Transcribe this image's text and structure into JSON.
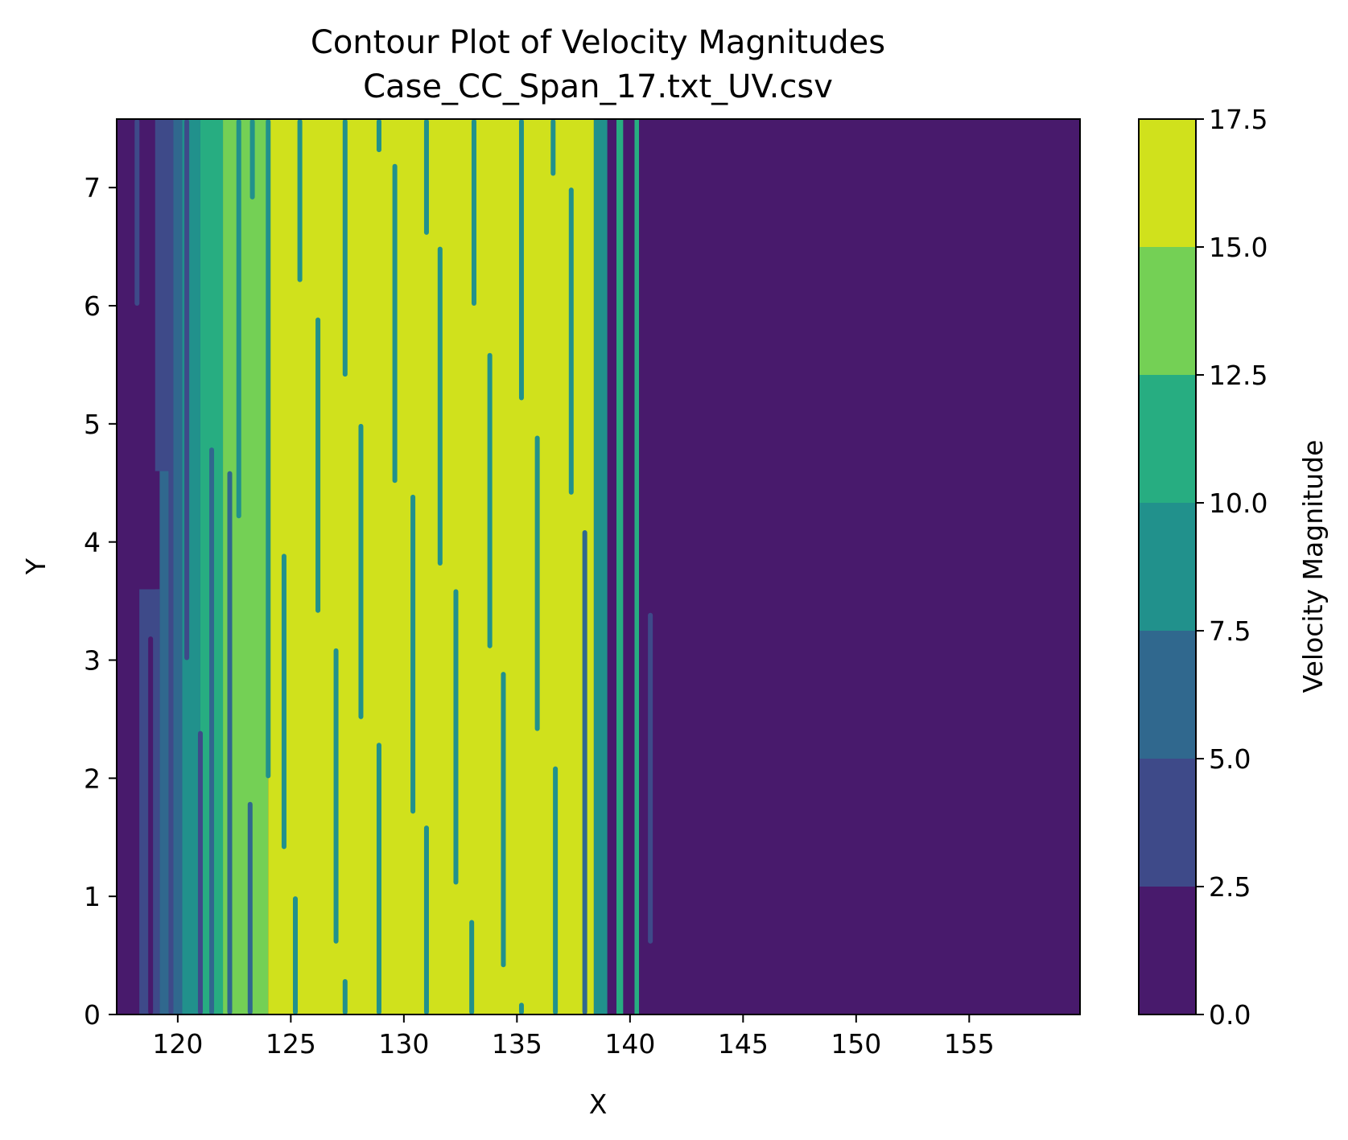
{
  "chart_data": {
    "type": "heatmap",
    "subtype": "filled-contour",
    "title": "Contour Plot of Velocity Magnitudes",
    "subtitle": "Case_CC_Span_17.txt_UV.csv",
    "xlabel": "X",
    "ylabel": "Y",
    "xlim": [
      117.3,
      159.9
    ],
    "ylim": [
      0,
      7.58
    ],
    "xticks": [
      120,
      125,
      130,
      135,
      140,
      145,
      150,
      155
    ],
    "xtick_labels": [
      "120",
      "125",
      "130",
      "135",
      "140",
      "145",
      "150",
      "155"
    ],
    "yticks": [
      0,
      1,
      2,
      3,
      4,
      5,
      6,
      7
    ],
    "ytick_labels": [
      "0",
      "1",
      "2",
      "3",
      "4",
      "5",
      "6",
      "7"
    ],
    "colorbar": {
      "label": "Velocity Magnitude",
      "levels": [
        0.0,
        2.5,
        5.0,
        7.5,
        10.0,
        12.5,
        15.0,
        17.5
      ],
      "tick_labels": [
        "0.0",
        "2.5",
        "5.0",
        "7.5",
        "10.0",
        "12.5",
        "15.0",
        "17.5"
      ],
      "colors": [
        "#481a6c",
        "#3e4a89",
        "#30688e",
        "#21918c",
        "#27ad81",
        "#74d055",
        "#d0e11c"
      ]
    },
    "regions": [
      {
        "x0": 117.3,
        "x1": 118.3,
        "y0": 0,
        "y1": 7.58,
        "level": 0
      },
      {
        "x0": 118.3,
        "x1": 119.2,
        "y0": 0,
        "y1": 3.6,
        "level": 1
      },
      {
        "x0": 118.3,
        "x1": 119.0,
        "y0": 3.6,
        "y1": 7.58,
        "level": 0
      },
      {
        "x0": 119.2,
        "x1": 120.2,
        "y0": 0,
        "y1": 7.58,
        "level": 2
      },
      {
        "x0": 119.0,
        "x1": 119.8,
        "y0": 4.6,
        "y1": 7.58,
        "level": 1
      },
      {
        "x0": 120.2,
        "x1": 121.0,
        "y0": 0,
        "y1": 7.58,
        "level": 3
      },
      {
        "x0": 121.0,
        "x1": 122.0,
        "y0": 0,
        "y1": 7.58,
        "level": 4
      },
      {
        "x0": 122.0,
        "x1": 124.0,
        "y0": 0,
        "y1": 7.58,
        "level": 5
      },
      {
        "x0": 124.0,
        "x1": 138.4,
        "y0": 0,
        "y1": 7.58,
        "level": 6
      },
      {
        "x0": 138.4,
        "x1": 139.0,
        "y0": 0,
        "y1": 7.58,
        "level": 3
      },
      {
        "x0": 139.0,
        "x1": 139.4,
        "y0": 0,
        "y1": 7.58,
        "level": 0
      },
      {
        "x0": 139.4,
        "x1": 139.7,
        "y0": 0,
        "y1": 7.58,
        "level": 4
      },
      {
        "x0": 139.7,
        "x1": 140.2,
        "y0": 0,
        "y1": 7.58,
        "level": 0
      },
      {
        "x0": 140.2,
        "x1": 140.4,
        "y0": 0,
        "y1": 7.58,
        "level": 4
      },
      {
        "x0": 140.4,
        "x1": 159.9,
        "y0": 0,
        "y1": 7.58,
        "level": 0
      }
    ],
    "streaks": [
      {
        "x": 118.2,
        "y0": 6.0,
        "y1": 7.58,
        "level": 1
      },
      {
        "x": 118.8,
        "y0": 0,
        "y1": 3.2,
        "level": 0
      },
      {
        "x": 119.7,
        "y0": 0,
        "y1": 7.58,
        "level": 1
      },
      {
        "x": 120.4,
        "y0": 3.0,
        "y1": 7.58,
        "level": 1
      },
      {
        "x": 121.0,
        "y0": 0,
        "y1": 2.4,
        "level": 1
      },
      {
        "x": 121.5,
        "y0": 0,
        "y1": 4.8,
        "level": 2
      },
      {
        "x": 122.3,
        "y0": 0,
        "y1": 4.6,
        "level": 2
      },
      {
        "x": 122.7,
        "y0": 4.2,
        "y1": 7.58,
        "level": 3
      },
      {
        "x": 123.2,
        "y0": 0,
        "y1": 1.8,
        "level": 2
      },
      {
        "x": 123.3,
        "y0": 6.9,
        "y1": 7.58,
        "level": 3
      },
      {
        "x": 124.0,
        "y0": 2.0,
        "y1": 7.58,
        "level": 3
      },
      {
        "x": 124.7,
        "y0": 1.4,
        "y1": 3.9,
        "level": 3
      },
      {
        "x": 125.2,
        "y0": 0,
        "y1": 1.0,
        "level": 3
      },
      {
        "x": 125.4,
        "y0": 6.2,
        "y1": 7.58,
        "level": 3
      },
      {
        "x": 126.2,
        "y0": 3.4,
        "y1": 5.9,
        "level": 3
      },
      {
        "x": 127.0,
        "y0": 0.6,
        "y1": 3.1,
        "level": 3
      },
      {
        "x": 127.4,
        "y0": 0,
        "y1": 0.3,
        "level": 3
      },
      {
        "x": 127.4,
        "y0": 5.4,
        "y1": 7.58,
        "level": 3
      },
      {
        "x": 128.1,
        "y0": 2.5,
        "y1": 5.0,
        "level": 3
      },
      {
        "x": 128.9,
        "y0": 0,
        "y1": 2.3,
        "level": 3
      },
      {
        "x": 128.9,
        "y0": 7.3,
        "y1": 7.58,
        "level": 3
      },
      {
        "x": 129.6,
        "y0": 4.5,
        "y1": 7.2,
        "level": 3
      },
      {
        "x": 130.4,
        "y0": 1.7,
        "y1": 4.4,
        "level": 3
      },
      {
        "x": 131.0,
        "y0": 0,
        "y1": 1.6,
        "level": 3
      },
      {
        "x": 131.0,
        "y0": 6.6,
        "y1": 7.58,
        "level": 3
      },
      {
        "x": 131.6,
        "y0": 3.8,
        "y1": 6.5,
        "level": 3
      },
      {
        "x": 132.3,
        "y0": 1.1,
        "y1": 3.6,
        "level": 3
      },
      {
        "x": 133.0,
        "y0": 0,
        "y1": 0.8,
        "level": 3
      },
      {
        "x": 133.1,
        "y0": 6.0,
        "y1": 7.58,
        "level": 3
      },
      {
        "x": 133.8,
        "y0": 3.1,
        "y1": 5.6,
        "level": 3
      },
      {
        "x": 134.4,
        "y0": 0.4,
        "y1": 2.9,
        "level": 3
      },
      {
        "x": 135.2,
        "y0": 5.2,
        "y1": 7.58,
        "level": 3
      },
      {
        "x": 135.2,
        "y0": 0,
        "y1": 0.1,
        "level": 3
      },
      {
        "x": 135.9,
        "y0": 2.4,
        "y1": 4.9,
        "level": 3
      },
      {
        "x": 136.6,
        "y0": 7.1,
        "y1": 7.58,
        "level": 3
      },
      {
        "x": 136.7,
        "y0": 0,
        "y1": 2.1,
        "level": 3
      },
      {
        "x": 137.4,
        "y0": 4.4,
        "y1": 7.0,
        "level": 3
      },
      {
        "x": 138.0,
        "y0": 0,
        "y1": 4.1,
        "level": 2
      },
      {
        "x": 140.9,
        "y0": 0.6,
        "y1": 3.4,
        "level": 1
      }
    ]
  }
}
